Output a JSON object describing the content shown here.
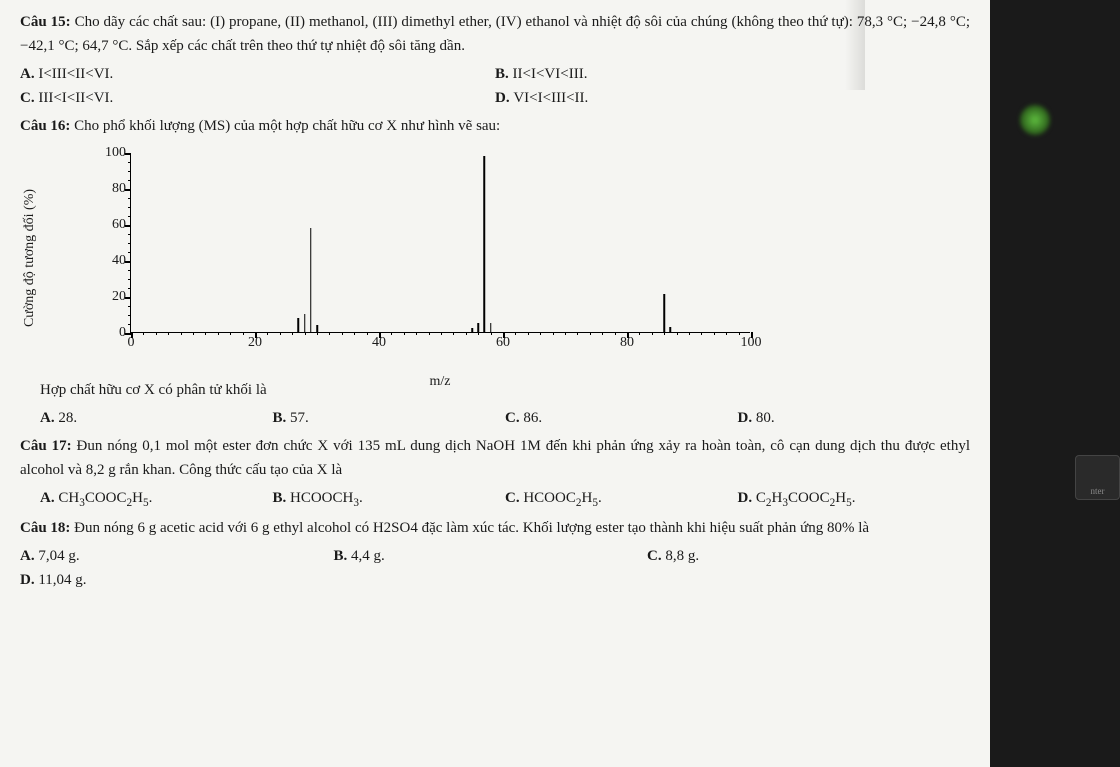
{
  "q15": {
    "label": "Câu 15:",
    "text": " Cho dãy các chất sau: (I) propane, (II) methanol, (III) dimethyl ether, (IV) ethanol và nhiệt độ sôi của chúng (không theo thứ tự): 78,3 °C; −24,8 °C; −42,1 °C; 64,7 °C. Sắp xếp các chất trên theo thứ tự nhiệt độ sôi tăng dần.",
    "optA_b": "A. ",
    "optA": "I<III<II<VI.",
    "optB_b": "B. ",
    "optB": "II<I<VI<III.",
    "optC_b": "C. ",
    "optC": "III<I<II<VI.",
    "optD_b": "D. ",
    "optD": "VI<I<III<II."
  },
  "q16": {
    "label": "Câu 16:",
    "text": " Cho phổ khối lượng (MS) của một hợp chất hữu cơ X như hình vẽ sau:",
    "sub": "Hợp chất hữu cơ X có phân tử khối là",
    "optA_b": "A. ",
    "optA": "28.",
    "optB_b": "B. ",
    "optB": "57.",
    "optC_b": "C. ",
    "optC": "86.",
    "optD_b": "D. ",
    "optD": "80."
  },
  "q17": {
    "label": "Câu 17:",
    "text": " Đun nóng 0,1 mol một ester đơn chức X với 135 mL dung dịch NaOH 1M đến khi phản ứng xảy ra hoàn toàn, cô cạn dung dịch thu được ethyl alcohol và 8,2 g rắn khan. Công thức cấu tạo của X là",
    "optA_b": "A. ",
    "optA_html": "CH<span class='sub'>3</span>COOC<span class='sub'>2</span>H<span class='sub'>5</span>.",
    "optB_b": "B. ",
    "optB_html": "HCOOCH<span class='sub'>3</span>.",
    "optC_b": "C. ",
    "optC_html": "HCOOC<span class='sub'>2</span>H<span class='sub'>5</span>.",
    "optD_b": "D. ",
    "optD_html": "C<span class='sub'>2</span>H<span class='sub'>3</span>COOC<span class='sub'>2</span>H<span class='sub'>5</span>."
  },
  "q18": {
    "label": "Câu 18:",
    "text": " Đun nóng 6 g acetic acid với 6 g ethyl alcohol có H2SO4 đặc làm xúc tác. Khối lượng ester tạo thành khi hiệu suất phản ứng 80% là",
    "optA_b": "A. ",
    "optA": "7,04 g.",
    "optB_b": "B. ",
    "optB": "4,4 g.",
    "optC_b": "C. ",
    "optC": "8,8 g.",
    "optD_b": "D. ",
    "optD": "11,04 g."
  },
  "chart": {
    "ylabel": "Cường độ tương đối (%)",
    "xlabel": "m/z",
    "xlim": [
      0,
      100
    ],
    "ylim": [
      0,
      100
    ],
    "xtick_step": 20,
    "ytick_step": 20,
    "xminor_step": 2,
    "yminor_step": 5,
    "peaks": [
      {
        "x": 27,
        "h": 8
      },
      {
        "x": 28,
        "h": 10
      },
      {
        "x": 29,
        "h": 58
      },
      {
        "x": 30,
        "h": 4
      },
      {
        "x": 55,
        "h": 2
      },
      {
        "x": 56,
        "h": 5
      },
      {
        "x": 57,
        "h": 98
      },
      {
        "x": 58,
        "h": 5
      },
      {
        "x": 86,
        "h": 21
      },
      {
        "x": 87,
        "h": 3
      }
    ],
    "line_color": "#000000",
    "background": "#f5f5f2"
  },
  "side": {
    "enter": "nter"
  }
}
